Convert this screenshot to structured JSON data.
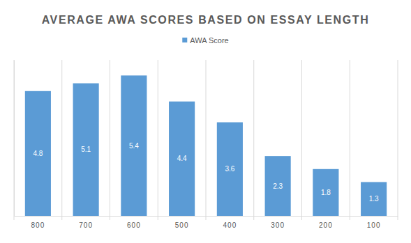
{
  "chart_data": {
    "type": "bar",
    "title": "AVERAGE AWA SCORES BASED ON ESSAY LENGTH",
    "categories": [
      "800",
      "700",
      "600",
      "500",
      "400",
      "300",
      "200",
      "100"
    ],
    "series": [
      {
        "name": "AWA Score",
        "color": "#5b9bd5",
        "values": [
          4.8,
          5.1,
          5.4,
          4.4,
          3.6,
          2.3,
          1.8,
          1.3
        ]
      }
    ],
    "ylim": [
      0,
      6
    ],
    "legend": "top",
    "data_labels": true,
    "tick_labels": "x",
    "grid": true
  }
}
